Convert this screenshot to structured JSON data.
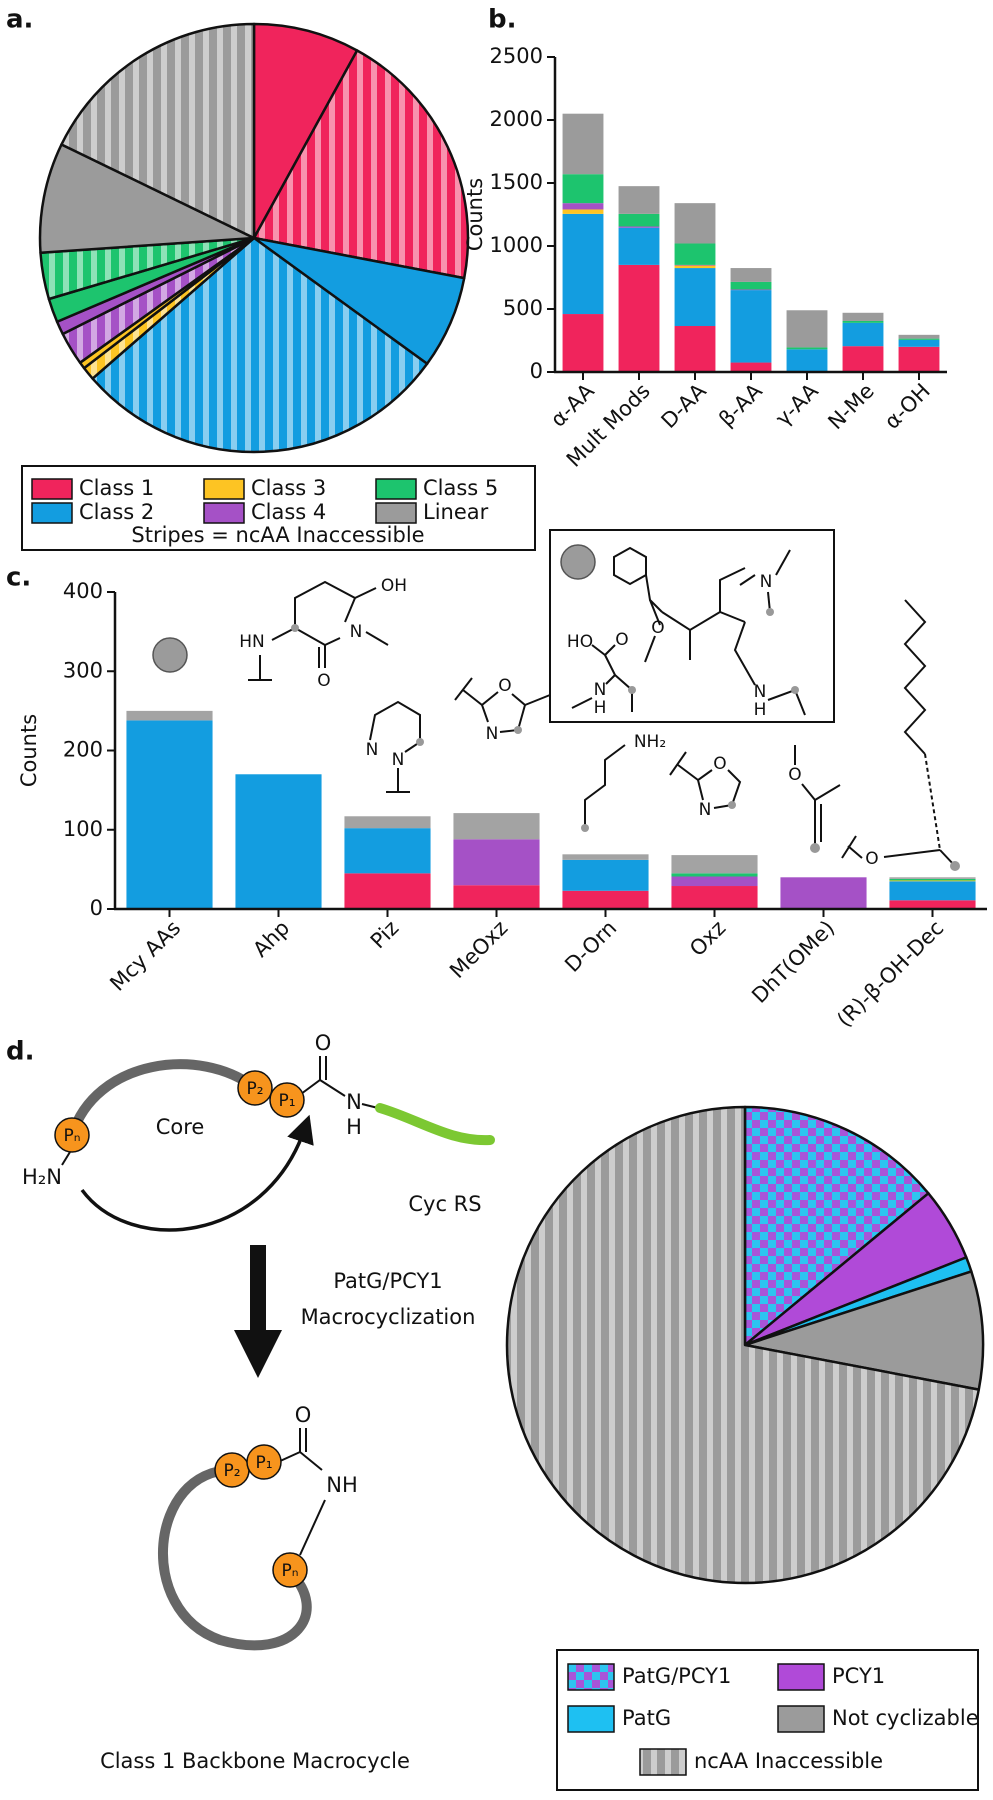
{
  "chart_data": [
    {
      "type": "pie",
      "panel": "a.",
      "slices": [
        {
          "name": "Class 1",
          "pattern": "solid",
          "value": 8
        },
        {
          "name": "Class 1",
          "pattern": "stripes",
          "value": 20
        },
        {
          "name": "Class 2",
          "pattern": "solid",
          "value": 7
        },
        {
          "name": "Class 2",
          "pattern": "stripes",
          "value": 28.6
        },
        {
          "name": "Class 3",
          "pattern": "stripes",
          "value": 1
        },
        {
          "name": "Class 3",
          "pattern": "solid",
          "value": 0.5
        },
        {
          "name": "Class 4",
          "pattern": "stripes",
          "value": 2.5
        },
        {
          "name": "Class 4",
          "pattern": "solid",
          "value": 1
        },
        {
          "name": "Class 5",
          "pattern": "solid",
          "value": 1.8
        },
        {
          "name": "Class 5",
          "pattern": "stripes",
          "value": 3.5
        },
        {
          "name": "Linear",
          "pattern": "solid",
          "value": 8.3
        },
        {
          "name": "Linear",
          "pattern": "stripes",
          "value": 17.8
        }
      ],
      "legend": [
        {
          "name": "Class 1",
          "color": "#f0245c"
        },
        {
          "name": "Class 3",
          "color": "#fdc423"
        },
        {
          "name": "Class 5",
          "color": "#1dc46e"
        },
        {
          "name": "Class 2",
          "color": "#139de0"
        },
        {
          "name": "Class 4",
          "color": "#a551c6"
        },
        {
          "name": "Linear",
          "color": "#9b9b9b"
        }
      ],
      "note": "Stripes = ncAA Inaccessible"
    },
    {
      "type": "bar",
      "stacked": true,
      "panel": "b.",
      "ylabel": "Counts",
      "categories": [
        "α-AA",
        "Mult Mods",
        "D-AA",
        "β-AA",
        "γ-AA",
        "N-Me",
        "α-OH"
      ],
      "series": [
        {
          "color": "#f0245c",
          "values": [
            460,
            850,
            365,
            75,
            0,
            205,
            200
          ]
        },
        {
          "color": "#139de0",
          "values": [
            795,
            295,
            460,
            575,
            180,
            185,
            55
          ]
        },
        {
          "color": "#fdc423",
          "values": [
            35,
            0,
            20,
            0,
            0,
            0,
            0
          ]
        },
        {
          "color": "#a551c6",
          "values": [
            50,
            10,
            5,
            5,
            0,
            0,
            0
          ]
        },
        {
          "color": "#1dc46e",
          "values": [
            230,
            100,
            170,
            60,
            15,
            15,
            10
          ]
        },
        {
          "color": "#9b9b9b",
          "values": [
            480,
            220,
            320,
            110,
            295,
            65,
            30
          ]
        }
      ],
      "ylim": [
        0,
        2500
      ],
      "yticks": [
        0,
        500,
        1000,
        1500,
        2000,
        2500
      ]
    },
    {
      "type": "bar",
      "stacked": true,
      "panel": "c.",
      "ylabel": "Counts",
      "categories": [
        "Mcy AAs",
        "Ahp",
        "Piz",
        "MeOxz",
        "D-Orn",
        "Oxz",
        "DhT(OMe)",
        "(R)-β-OH-Dec"
      ],
      "series": [
        {
          "color": "#f0245c",
          "values": [
            0,
            0,
            45,
            30,
            23,
            29,
            0,
            11
          ]
        },
        {
          "color": "#139de0",
          "values": [
            238,
            170,
            57,
            0,
            39,
            0,
            0,
            24
          ]
        },
        {
          "color": "#fdc423",
          "values": [
            0,
            0,
            0,
            0,
            0,
            0,
            0,
            1
          ]
        },
        {
          "color": "#a551c6",
          "values": [
            0,
            0,
            0,
            58,
            0,
            12,
            40,
            0
          ]
        },
        {
          "color": "#1dc46e",
          "values": [
            0,
            0,
            0,
            0,
            0,
            4,
            0,
            2
          ]
        },
        {
          "color": "#a3a3a3",
          "values": [
            12,
            0,
            15,
            33,
            7,
            23,
            0,
            2
          ]
        }
      ],
      "ylim": [
        0,
        400
      ],
      "yticks": [
        0,
        100,
        200,
        300,
        400
      ]
    },
    {
      "type": "pie",
      "panel": "d.",
      "slices": [
        {
          "name": "PatG/PCY1",
          "pattern": "checker",
          "colors": [
            "#2ec4f0",
            "#a855d8"
          ],
          "value": 14
        },
        {
          "name": "PCY1",
          "pattern": "solid",
          "color": "#b04ad8",
          "value": 5
        },
        {
          "name": "PatG",
          "pattern": "solid",
          "color": "#1ec0f2",
          "value": 1
        },
        {
          "name": "Not cyclizable",
          "pattern": "solid",
          "color": "#9b9b9b",
          "value": 8
        },
        {
          "name": "ncAA Inaccessible",
          "pattern": "stripes",
          "color": "#9b9b9b",
          "value": 72
        }
      ]
    }
  ],
  "structures": [
    [
      "HN",
      "O",
      "N",
      "OH"
    ],
    [
      "N",
      "N"
    ],
    [
      "O",
      "N"
    ],
    [
      "NH₂"
    ],
    [
      "O",
      "N"
    ],
    [
      "O"
    ],
    [
      "O"
    ],
    [
      "HO",
      "O",
      "N",
      "H",
      "O",
      "N",
      "N",
      "H"
    ]
  ],
  "diagram": {
    "residues": [
      "Pₙ",
      "P₂",
      "P₁"
    ],
    "core": "Core",
    "amine": "H₂N",
    "carbonyl": "O",
    "amide_n": "N",
    "amide_h": "H",
    "leader": "Cyc RS",
    "reaction": [
      "PatG/PCY1",
      "Macrocyclization"
    ],
    "product_residues": [
      "P₂",
      "P₁",
      "Pₙ"
    ],
    "product_carbonyl": "O",
    "product_amide": "NH",
    "caption": "Class 1 Backbone Macrocycle"
  }
}
